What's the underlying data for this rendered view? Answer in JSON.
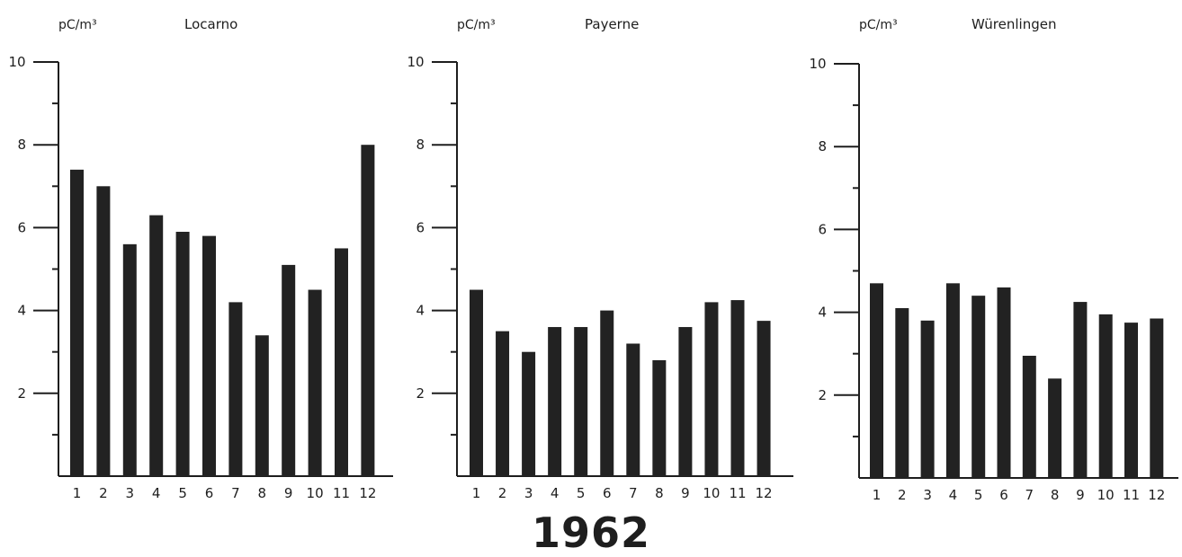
{
  "chart_data": [
    {
      "type": "bar",
      "title": "Locarno",
      "ylabel": "pC/m³",
      "xlabel": "",
      "categories": [
        "1",
        "2",
        "3",
        "4",
        "5",
        "6",
        "7",
        "8",
        "9",
        "10",
        "11",
        "12"
      ],
      "values": [
        7.4,
        7.0,
        5.6,
        6.3,
        5.9,
        5.8,
        4.2,
        3.4,
        5.1,
        4.5,
        5.5,
        8.0
      ],
      "ylim": [
        0,
        10
      ],
      "yticks": [
        "2",
        "4",
        "6",
        "8",
        "10"
      ],
      "bar_color": "#222222"
    },
    {
      "type": "bar",
      "title": "Payerne",
      "ylabel": "pC/m³",
      "xlabel": "",
      "categories": [
        "1",
        "2",
        "3",
        "4",
        "5",
        "6",
        "7",
        "8",
        "9",
        "10",
        "11",
        "12"
      ],
      "values": [
        4.5,
        3.5,
        3.0,
        3.6,
        3.6,
        4.0,
        3.2,
        2.8,
        3.6,
        4.2,
        4.25,
        3.75
      ],
      "ylim": [
        0,
        10
      ],
      "yticks": [
        "2",
        "4",
        "6",
        "8",
        "10"
      ],
      "bar_color": "#222222"
    },
    {
      "type": "bar",
      "title": "Würenlingen",
      "ylabel": "pC/m³",
      "xlabel": "",
      "categories": [
        "1",
        "2",
        "3",
        "4",
        "5",
        "6",
        "7",
        "8",
        "9",
        "10",
        "11",
        "12"
      ],
      "values": [
        4.7,
        4.1,
        3.8,
        4.7,
        4.4,
        4.6,
        2.95,
        2.4,
        4.25,
        3.95,
        3.75,
        3.85
      ],
      "ylim": [
        0,
        10
      ],
      "yticks": [
        "2",
        "4",
        "6",
        "8",
        "10"
      ],
      "bar_color": "#222222"
    }
  ],
  "caption": "1962"
}
